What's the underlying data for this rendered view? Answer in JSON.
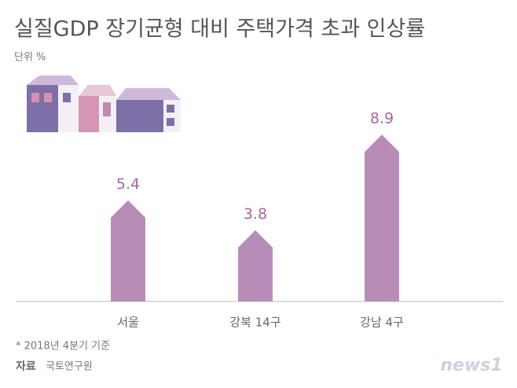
{
  "chart_data": {
    "type": "bar",
    "title": "실질GDP 장기균형 대비 주택가격 초과 인상률",
    "unit_label": "단위 %",
    "categories": [
      "서울",
      "강북 14구",
      "강남 4구"
    ],
    "values": [
      5.4,
      3.8,
      8.9
    ],
    "color": "#b78db7",
    "label_color": "#a5679d",
    "note": "* 2018년 4분기 기준",
    "source_label": "자료",
    "source": "국토연구원",
    "logo": "news1"
  }
}
